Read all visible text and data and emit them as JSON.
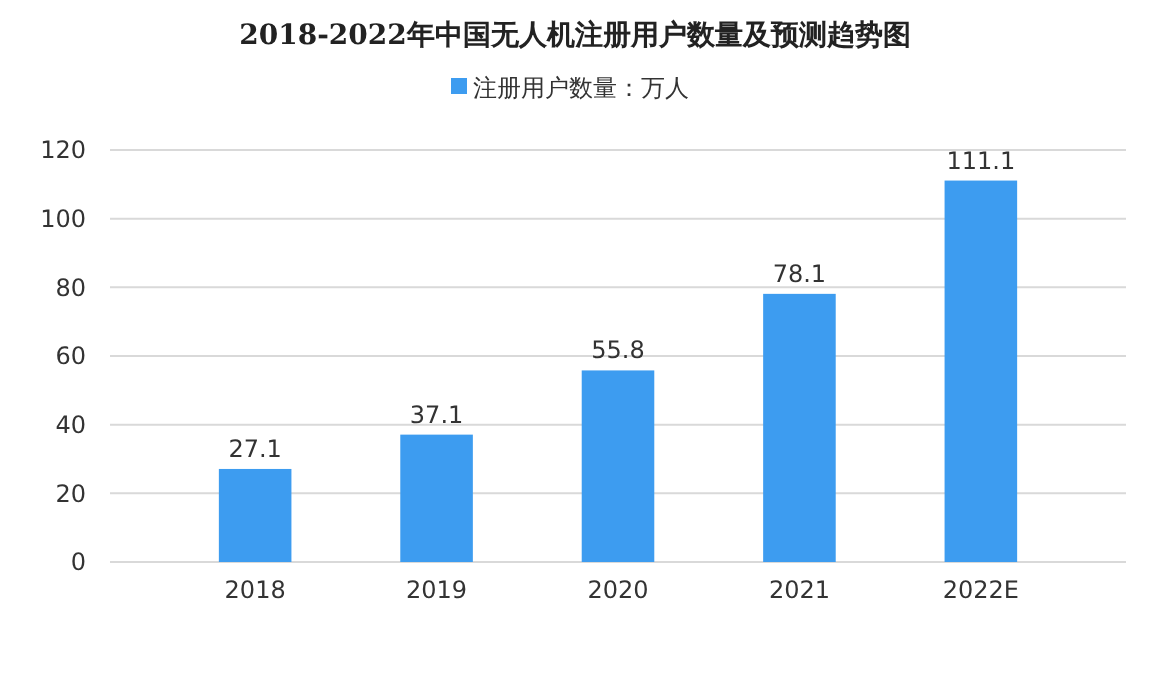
{
  "chart_data": {
    "type": "bar",
    "title": "2018-2022年中国无人机注册用户数量及预测趋势图",
    "categories": [
      "2018",
      "2019",
      "2020",
      "2021",
      "2022E"
    ],
    "series": [
      {
        "name": "注册用户数量：万人",
        "color": "#3d9cf0",
        "values": [
          27.1,
          37.1,
          55.8,
          78.1,
          111.1
        ]
      }
    ],
    "ylim": [
      0,
      120
    ],
    "yticks": [
      0,
      20,
      40,
      60,
      80,
      100,
      120
    ],
    "grid": "y",
    "legend": "top",
    "data_labels": true
  }
}
